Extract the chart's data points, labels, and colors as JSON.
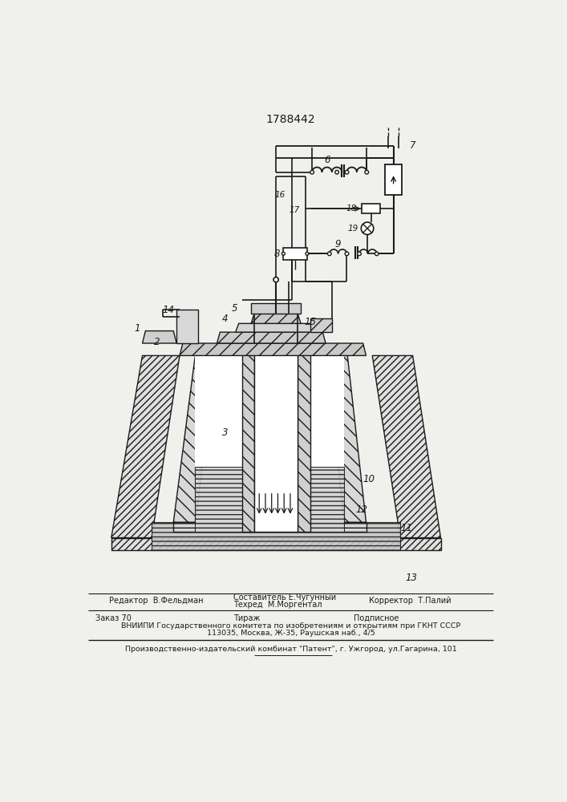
{
  "patent_number": "1788442",
  "bg": "#f0f0ec",
  "lc": "#1a1a1a",
  "footer_editor": "Редактор  В.Фельдман",
  "footer_comp1": "Составитель Е.Чугунный",
  "footer_comp2": "Техред  М.Моргентал",
  "footer_corr": "Корректор  Т.Палий",
  "footer_order": "Заказ 70",
  "footer_circ": "Тираж",
  "footer_sub": "Подписное",
  "footer_org": "ВНИИПИ Государственного комитета по изобретениям и открытиям при ГКНТ СССР",
  "footer_addr": "113035, Москва, Ж-35, Раушская наб., 4/5",
  "footer_pub": "Производственно-издательский комбинат \"Патент\", г. Ужгород, ул.Гагарина, 101"
}
